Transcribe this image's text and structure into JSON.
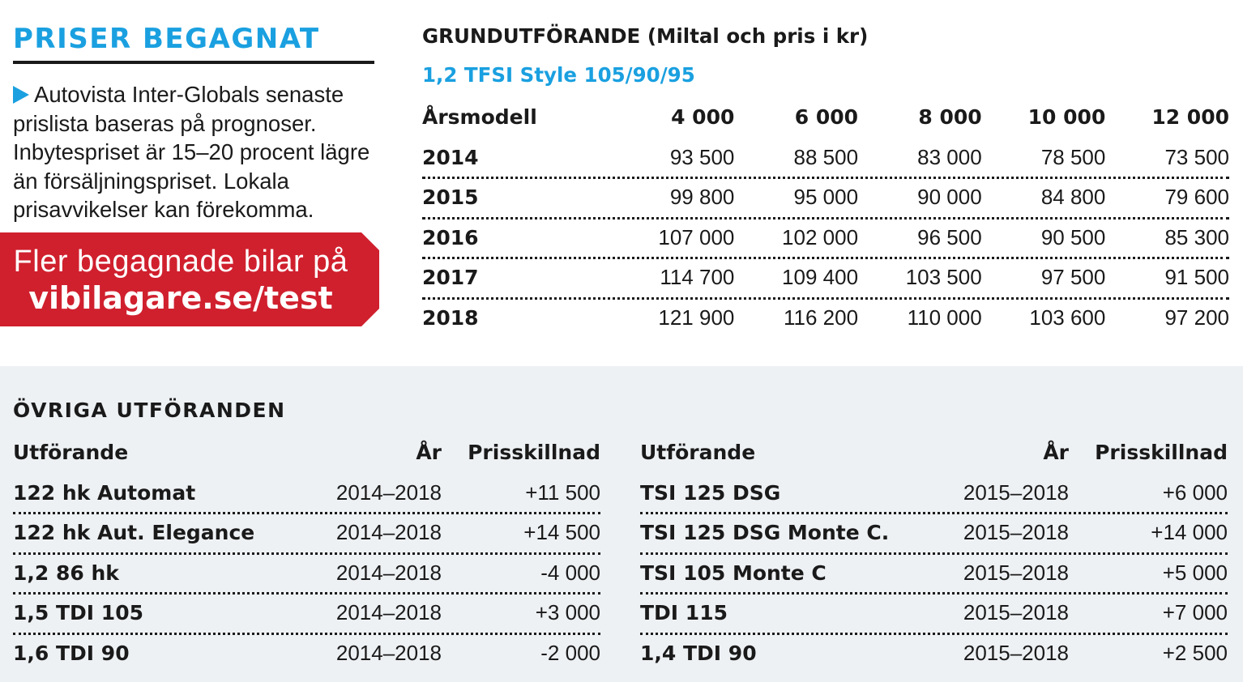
{
  "header": {
    "title": "PRISER BEGAGNAT",
    "intro": "Autovista Inter-Globals senaste prislista baseras på prognoser. Inbytespriset är 15–20 procent lägre än försäljningspriset. Lokala prisavvikelser kan förekomma."
  },
  "banner": {
    "line1": "Fler begagnade bilar på",
    "line2": "vibilagare.se/test",
    "color": "#d0202e"
  },
  "base_prices": {
    "title": "GRUNDUTFÖRANDE (Miltal och pris i kr)",
    "model": "1,2 TFSI Style 105/90/95",
    "columns": [
      "Årsmodell",
      "4 000",
      "6 000",
      "8 000",
      "10 000",
      "12 000"
    ],
    "rows": [
      {
        "year": "2014",
        "values": [
          "93 500",
          "88 500",
          "83 000",
          "78 500",
          "73 500"
        ]
      },
      {
        "year": "2015",
        "values": [
          "99 800",
          "95 000",
          "90 000",
          "84 800",
          "79 600"
        ]
      },
      {
        "year": "2016",
        "values": [
          "107 000",
          "102 000",
          "96 500",
          "90 500",
          "85 300"
        ]
      },
      {
        "year": "2017",
        "values": [
          "114 700",
          "109 400",
          "103 500",
          "97 500",
          "91 500"
        ]
      },
      {
        "year": "2018",
        "values": [
          "121 900",
          "116 200",
          "110 000",
          "103 600",
          "97 200"
        ]
      }
    ]
  },
  "other": {
    "title": "ÖVRIGA UTFÖRANDEN",
    "columns": [
      "Utförande",
      "År",
      "Prisskillnad"
    ],
    "left_rows": [
      {
        "name": "122 hk Automat",
        "years": "2014–2018",
        "diff": "+11 500"
      },
      {
        "name": "122 hk Aut. Elegance",
        "years": "2014–2018",
        "diff": "+14 500"
      },
      {
        "name": "1,2 86 hk",
        "years": "2014–2018",
        "diff": "-4 000"
      },
      {
        "name": "1,5 TDI 105",
        "years": "2014–2018",
        "diff": "+3 000"
      },
      {
        "name": "1,6 TDI 90",
        "years": "2014–2018",
        "diff": "-2 000"
      }
    ],
    "right_rows": [
      {
        "name": "TSI 125 DSG",
        "years": "2015–2018",
        "diff": "+6 000"
      },
      {
        "name": "TSI 125 DSG Monte C.",
        "years": "2015–2018",
        "diff": "+14 000"
      },
      {
        "name": "TSI 105 Monte C",
        "years": "2015–2018",
        "diff": "+5 000"
      },
      {
        "name": "TDI 115",
        "years": "2015–2018",
        "diff": "+7 000"
      },
      {
        "name": "1,4 TDI 90",
        "years": "2015–2018",
        "diff": "+2 500"
      }
    ]
  },
  "colors": {
    "accent": "#1aa0e0",
    "panel": "#eef1f4",
    "text": "#1a1a1a"
  }
}
